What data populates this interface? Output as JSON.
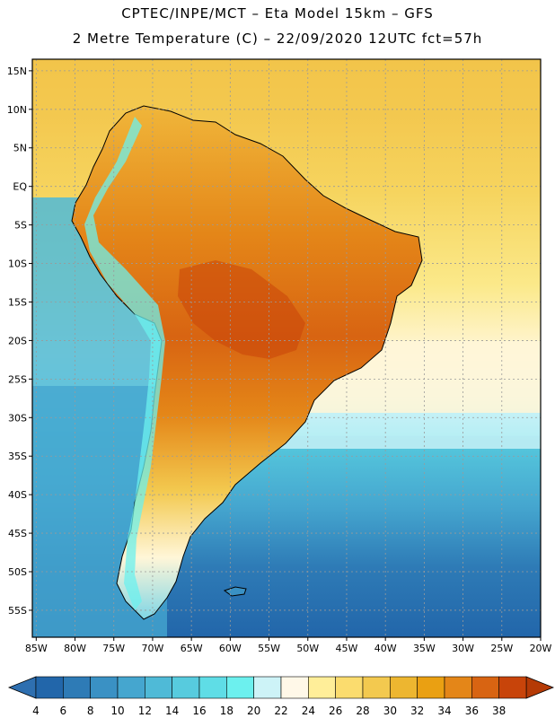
{
  "header": {
    "line1": "CPTEC/INPE/MCT –  Eta Model 15km – GFS",
    "line2": "2 Metre Temperature (C) – 22/09/2020 12UTC fct=57h"
  },
  "map": {
    "lat_labels": [
      "15N",
      "10N",
      "5N",
      "EQ",
      "5S",
      "10S",
      "15S",
      "20S",
      "25S",
      "30S",
      "35S",
      "40S",
      "45S",
      "50S",
      "55S"
    ],
    "lon_labels": [
      "85W",
      "80W",
      "75W",
      "70W",
      "65W",
      "60W",
      "55W",
      "50W",
      "45W",
      "40W",
      "35W",
      "30W",
      "25W",
      "20W"
    ],
    "lat_range": [
      16.5,
      -58.5
    ],
    "lon_range": [
      -85.5,
      -20.0
    ]
  },
  "colorbar": {
    "labels": [
      "4",
      "6",
      "8",
      "10",
      "12",
      "14",
      "16",
      "18",
      "20",
      "22",
      "24",
      "26",
      "28",
      "30",
      "32",
      "34",
      "36",
      "38"
    ],
    "colors": [
      "#2266aa",
      "#2e7bb6",
      "#3a91c4",
      "#45a6cf",
      "#4fbad7",
      "#57cbde",
      "#5fdde6",
      "#6cf0ee",
      "#cdf3f7",
      "#fff8e8",
      "#ffee99",
      "#fbdc6e",
      "#f3c94f",
      "#edb630",
      "#eaa012",
      "#e48618",
      "#d86412",
      "#c8440a"
    ],
    "left_arrow_color": "#2e6fb0",
    "right_arrow_color": "#b53a06"
  }
}
